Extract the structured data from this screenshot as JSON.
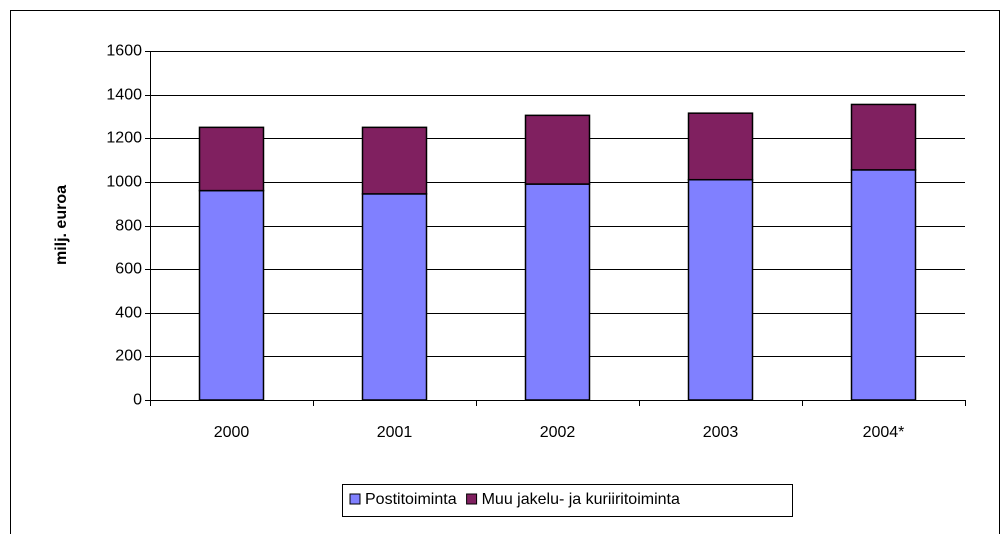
{
  "chart_data": {
    "type": "stacked_bar",
    "y_label": "milj. euroa",
    "categories": [
      "2000",
      "2001",
      "2002",
      "2003",
      "2004*"
    ],
    "series": [
      {
        "name": "Postitoiminta",
        "color": "#8080ff",
        "values": [
          960,
          945,
          990,
          1010,
          1055
        ]
      },
      {
        "name": "Muu jakelu- ja kuriiritoiminta",
        "color": "#802060",
        "values": [
          290,
          305,
          315,
          305,
          300
        ]
      }
    ],
    "ylim": [
      0,
      1600
    ],
    "yticks": [
      0,
      200,
      400,
      600,
      800,
      1000,
      1200,
      1400,
      1600
    ],
    "grid": true
  }
}
